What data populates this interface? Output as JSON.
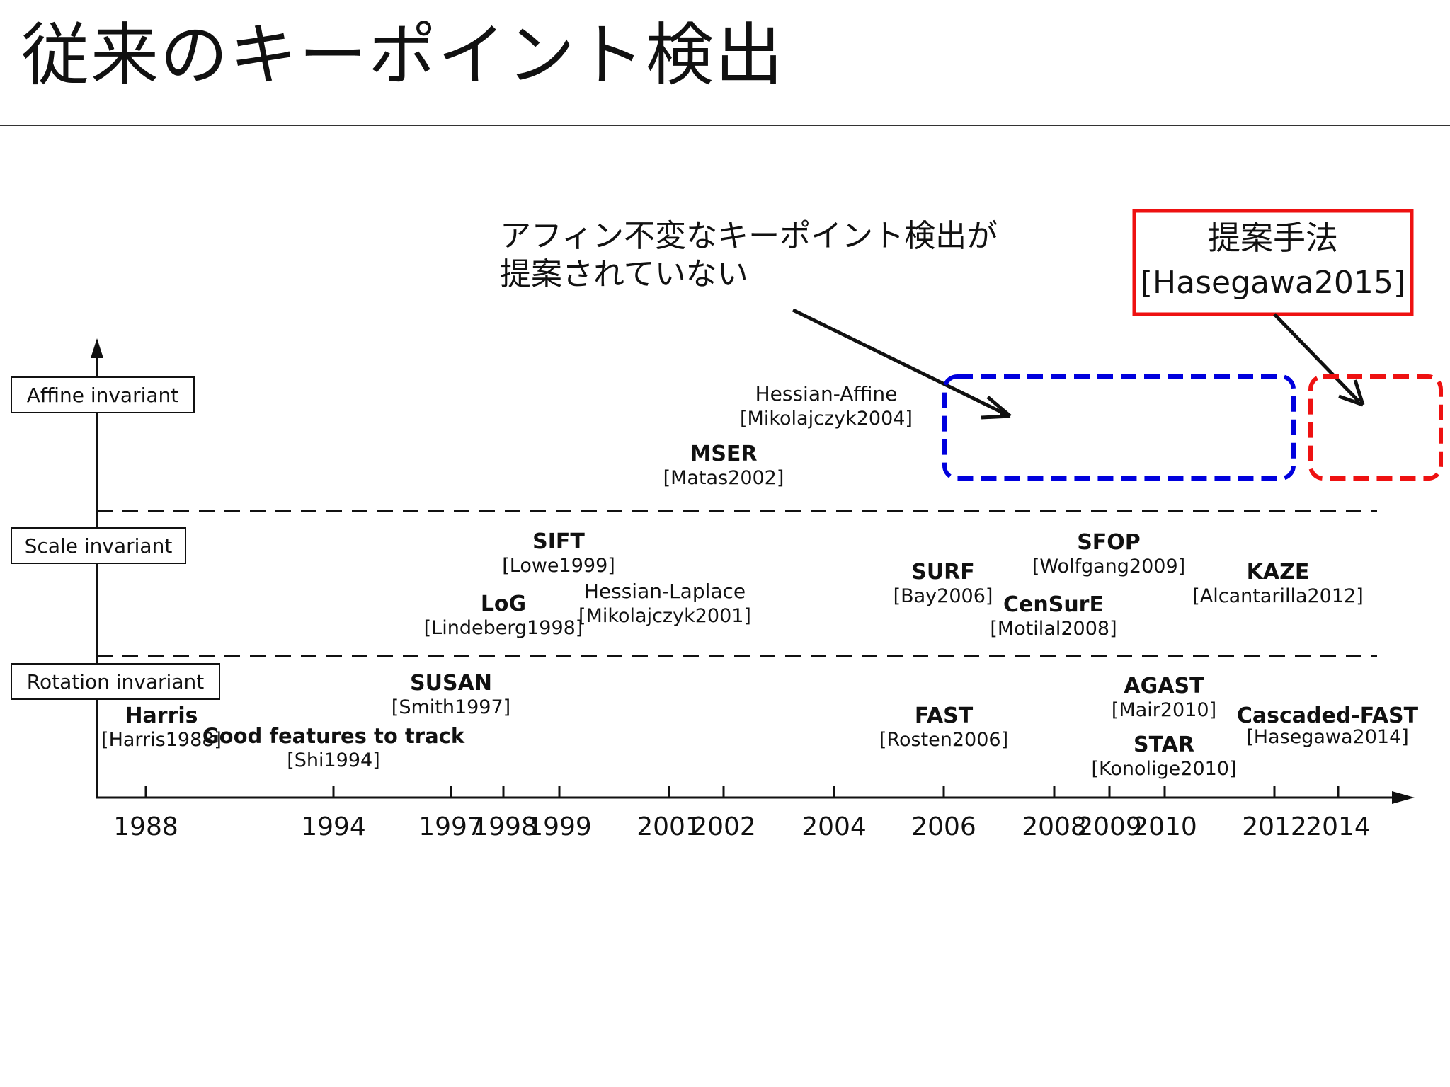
{
  "slide": {
    "title": "従来のキーポイント検出"
  },
  "tiers": {
    "affine": "Affine invariant",
    "scale": "Scale invariant",
    "rotation": "Rotation invariant"
  },
  "timeline": {
    "years": [
      "1988",
      "1994",
      "1997",
      "1998",
      "1999",
      "2001",
      "2002",
      "2004",
      "2006",
      "2008",
      "2009",
      "2010",
      "2012",
      "2014"
    ]
  },
  "methods": [
    {
      "name": "Hessian-Affine",
      "ref": "[Mikolajczyk2004]",
      "bold": false
    },
    {
      "name": "MSER",
      "ref": "[Matas2002]",
      "bold": true
    },
    {
      "name": "SIFT",
      "ref": "[Lowe1999]",
      "bold": true
    },
    {
      "name": "LoG",
      "ref": "[Lindeberg1998]",
      "bold": true
    },
    {
      "name": "Hessian-Laplace",
      "ref": "[Mikolajczyk2001]",
      "bold": false
    },
    {
      "name": "SURF",
      "ref": "[Bay2006]",
      "bold": true
    },
    {
      "name": "SFOP",
      "ref": "[Wolfgang2009]",
      "bold": true
    },
    {
      "name": "CenSurE",
      "ref": "[Motilal2008]",
      "bold": true
    },
    {
      "name": "KAZE",
      "ref": "[Alcantarilla2012]",
      "bold": true
    },
    {
      "name": "Harris",
      "ref": "[Harris1988]",
      "bold": true
    },
    {
      "name": "Good features to track",
      "ref": "[Shi1994]",
      "bold": true
    },
    {
      "name": "SUSAN",
      "ref": "[Smith1997]",
      "bold": true
    },
    {
      "name": "FAST",
      "ref": "[Rosten2006]",
      "bold": true
    },
    {
      "name": "AGAST",
      "ref": "[Mair2010]",
      "bold": true
    },
    {
      "name": "STAR",
      "ref": "[Konolige2010]",
      "bold": true
    },
    {
      "name": "Cascaded-FAST",
      "ref": "[Hasegawa2014]",
      "bold": true
    }
  ],
  "callouts": {
    "gap_note": {
      "line1": "アフィン不変なキーポイント検出が",
      "line2": "提案されていない"
    },
    "proposal": {
      "line1": "提案手法",
      "line2": "[Hasegawa2015]"
    }
  },
  "colors": {
    "axis": "#111111",
    "gap_box": "#0000dd",
    "proposal_box": "#ee1111"
  }
}
